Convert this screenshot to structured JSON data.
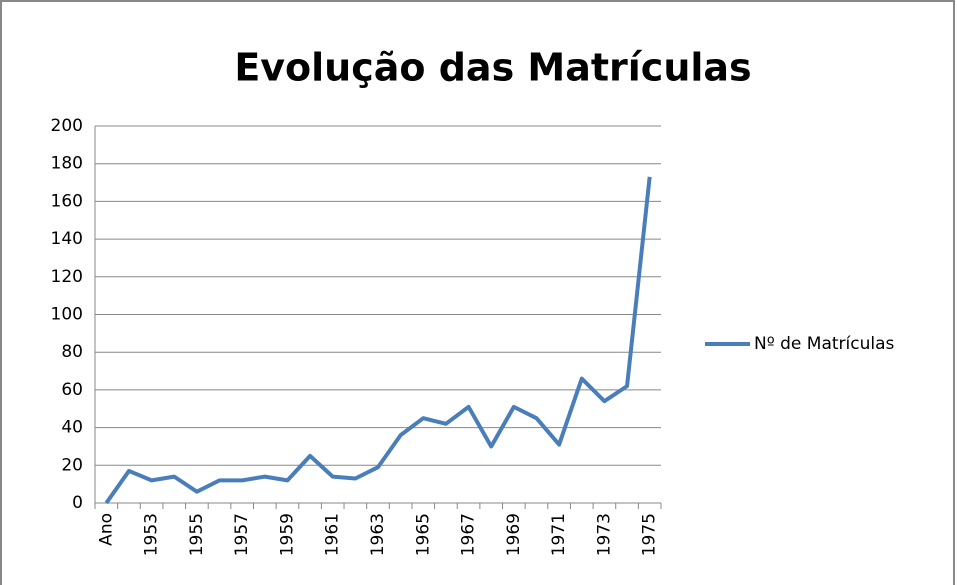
{
  "chart_data": {
    "type": "line",
    "title": "Evolução das Matrículas",
    "categories": [
      "Ano",
      null,
      "1953",
      null,
      "1955",
      null,
      "1957",
      null,
      "1959",
      null,
      "1961",
      null,
      "1963",
      null,
      "1965",
      null,
      "1967",
      null,
      "1969",
      null,
      "1971",
      null,
      "1973",
      null,
      "1975"
    ],
    "series": [
      {
        "name": "Nº de Matrículas",
        "color": "#4a7ebb",
        "values": [
          0,
          17,
          12,
          14,
          6,
          12,
          12,
          14,
          12,
          25,
          14,
          13,
          19,
          36,
          45,
          42,
          51,
          30,
          51,
          45,
          31,
          66,
          54,
          62,
          173
        ]
      }
    ],
    "ylim": [
      0,
      200
    ],
    "yticks": [
      0,
      20,
      40,
      60,
      80,
      100,
      120,
      140,
      160,
      180,
      200
    ],
    "grid": true,
    "legend": "right"
  }
}
